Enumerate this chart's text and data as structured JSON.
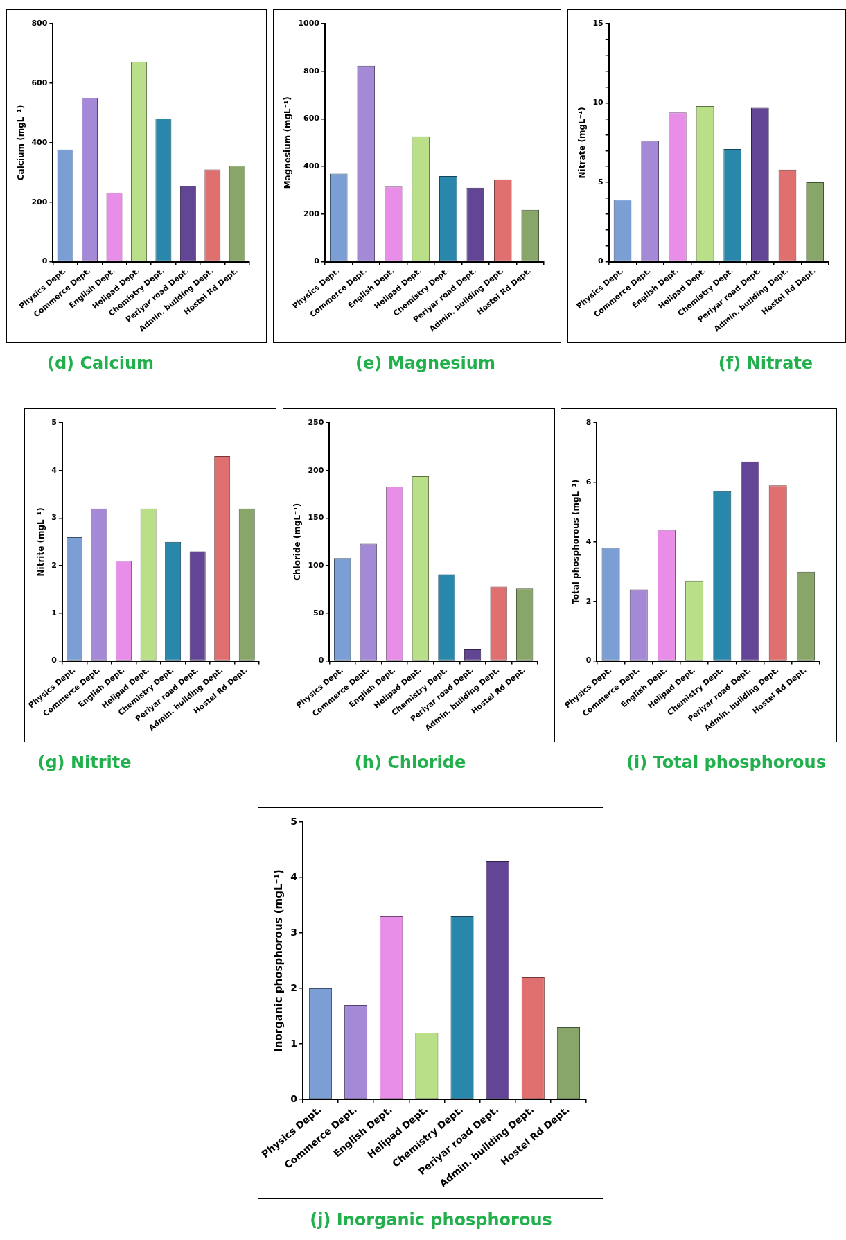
{
  "chart_data": [
    {
      "type": "bar",
      "title": "(d) Calcium",
      "ylabel": "Calcium (mgL⁻¹)",
      "categories": [
        "Physics Dept.",
        "Commerce Dept.",
        "English Dept.",
        "Helipad Dept.",
        "Chemistry Dept.",
        "Periyar road Dept.",
        "Admin. building Dept.",
        "Hostel Rd Dept."
      ],
      "values": [
        377,
        551,
        232,
        672,
        481,
        255,
        310,
        322
      ],
      "colors": [
        "#7b9fd4",
        "#a48ad6",
        "#e88ee8",
        "#b9df88",
        "#2a87ac",
        "#634595",
        "#e07070",
        "#88a66a"
      ],
      "ylim": [
        0,
        800
      ],
      "yticks": [
        0,
        200,
        400,
        600,
        800
      ],
      "grid": false
    },
    {
      "type": "bar",
      "title": "(e) Magnesium",
      "ylabel": "Magnesium (mgL⁻¹)",
      "categories": [
        "Physics Dept.",
        "Commerce Dept.",
        "English Dept.",
        "Helipad Dept.",
        "Chemistry Dept.",
        "Periyar road Dept.",
        "Admin. building Dept.",
        "Hostel Rd Dept."
      ],
      "values": [
        370,
        823,
        315,
        526,
        360,
        311,
        346,
        218
      ],
      "colors": [
        "#7b9fd4",
        "#a48ad6",
        "#e88ee8",
        "#b9df88",
        "#2a87ac",
        "#634595",
        "#e07070",
        "#88a66a"
      ],
      "ylim": [
        0,
        1000
      ],
      "yticks": [
        0,
        200,
        400,
        600,
        800,
        1000
      ],
      "grid": false
    },
    {
      "type": "bar",
      "title": "(f) Nitrate",
      "ylabel": "Nitrate (mgL⁻¹)",
      "categories": [
        "Physics Dept.",
        "Commerce Dept.",
        "English Dept.",
        "Helipad Dept.",
        "Chemistry Dept.",
        "Periyar road Dept.",
        "Admin. building Dept.",
        "Hostel Rd Dept."
      ],
      "values": [
        3.9,
        7.6,
        9.4,
        9.8,
        7.1,
        9.7,
        5.8,
        5.0
      ],
      "colors": [
        "#7b9fd4",
        "#a48ad6",
        "#e88ee8",
        "#b9df88",
        "#2a87ac",
        "#634595",
        "#e07070",
        "#88a66a"
      ],
      "ylim": [
        0,
        15
      ],
      "yticks": [
        0,
        {
          "value": 1,
          "label": null
        },
        {
          "value": 2,
          "label": null
        },
        {
          "value": 3,
          "label": null
        },
        {
          "value": 4,
          "label": null
        },
        5,
        {
          "value": 6,
          "label": null
        },
        {
          "value": 7,
          "label": null
        },
        {
          "value": 8,
          "label": null
        },
        {
          "value": 9,
          "label": null
        },
        10,
        {
          "value": 11,
          "label": null
        },
        {
          "value": 12,
          "label": null
        },
        {
          "value": 13,
          "label": null
        },
        {
          "value": 14,
          "label": null
        },
        15
      ],
      "grid": false
    },
    {
      "type": "bar",
      "title": "(g) Nitrite",
      "ylabel": "Nitrite (mgL⁻¹)",
      "categories": [
        "Physics Dept.",
        "Commerce Dept.",
        "English Dept.",
        "Helipad Dept.",
        "Chemistry Dept.",
        "Periyar road Dept.",
        "Admin. building Dept.",
        "Hostel Rd Dept."
      ],
      "values": [
        2.6,
        3.2,
        2.1,
        3.2,
        2.5,
        2.3,
        4.3,
        3.2
      ],
      "colors": [
        "#7b9fd4",
        "#a48ad6",
        "#e88ee8",
        "#b9df88",
        "#2a87ac",
        "#634595",
        "#e07070",
        "#88a66a"
      ],
      "ylim": [
        0,
        5
      ],
      "yticks": [
        0,
        1,
        2,
        3,
        4,
        5
      ],
      "grid": false
    },
    {
      "type": "bar",
      "title": "(h) Chloride",
      "ylabel": "Chloride (mgL⁻¹)",
      "categories": [
        "Physics Dept.",
        "Commerce Dept.",
        "English Dept.",
        "Helipad Dept.",
        "Chemistry Dept.",
        "Periyar road Dept.",
        "Admin. building Dept.",
        "Hostel Rd Dept."
      ],
      "values": [
        108,
        123,
        183,
        194,
        91,
        12,
        78,
        76
      ],
      "colors": [
        "#7b9fd4",
        "#a48ad6",
        "#e88ee8",
        "#b9df88",
        "#2a87ac",
        "#634595",
        "#e07070",
        "#88a66a"
      ],
      "ylim": [
        0,
        250
      ],
      "yticks": [
        0,
        50,
        100,
        150,
        200,
        250
      ],
      "grid": false
    },
    {
      "type": "bar",
      "title": "(i) Total phosphorous",
      "ylabel": "Total phosphorous (mgL⁻¹)",
      "categories": [
        "Physics Dept.",
        "Commerce Dept.",
        "English Dept.",
        "Helipad Dept.",
        "Chemistry Dept.",
        "Periyar road Dept.",
        "Admin. building Dept.",
        "Hostel Rd Dept."
      ],
      "values": [
        3.8,
        2.4,
        4.4,
        2.7,
        5.7,
        6.7,
        5.9,
        3.0
      ],
      "colors": [
        "#7b9fd4",
        "#a48ad6",
        "#e88ee8",
        "#b9df88",
        "#2a87ac",
        "#634595",
        "#e07070",
        "#88a66a"
      ],
      "ylim": [
        0,
        8
      ],
      "yticks": [
        0,
        2,
        4,
        6,
        8
      ],
      "grid": false
    },
    {
      "type": "bar",
      "title": "(j) Inorganic phosphorous",
      "ylabel": "Inorganic phosphorous (mgL⁻¹)",
      "categories": [
        "Physics Dept.",
        "Commerce Dept.",
        "English Dept.",
        "Helipad Dept.",
        "Chemistry Dept.",
        "Periyar road Dept.",
        "Admin. building Dept.",
        "Hostel Rd Dept."
      ],
      "values": [
        2.0,
        1.7,
        3.3,
        1.2,
        3.3,
        4.3,
        2.2,
        1.3
      ],
      "colors": [
        "#7b9fd4",
        "#a48ad6",
        "#e88ee8",
        "#b9df88",
        "#2a87ac",
        "#634595",
        "#e07070",
        "#88a66a"
      ],
      "ylim": [
        0,
        5
      ],
      "yticks": [
        0,
        1,
        2,
        3,
        4,
        5
      ],
      "grid": false
    }
  ]
}
